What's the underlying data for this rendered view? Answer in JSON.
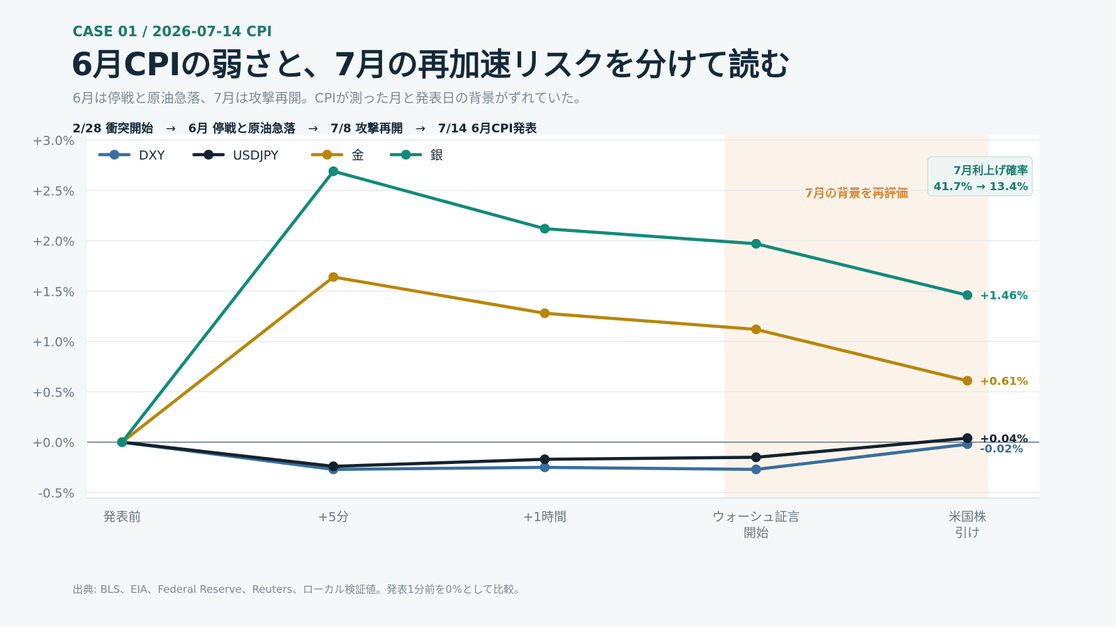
{
  "header": {
    "kicker": "CASE 01 / 2026-07-14 CPI",
    "title": "6月CPIの弱さと、7月の再加速リスクを分けて読む",
    "subtitle": "6月は停戦と原油急落、7月は攻撃再開。CPIが測った月と発表日の背景がずれていた。"
  },
  "timeline": [
    "2/28 衝突開始",
    "6月 停戦と原油急落",
    "7/8 攻撃再開",
    "7/14 6月CPI発表"
  ],
  "timeline_arrow": "→",
  "source": "出典: BLS、EIA、Federal Reserve、Reuters、ローカル検証値。発表1分前を0%として比較。",
  "chart_data": {
    "type": "line",
    "categories": [
      [
        "発表前"
      ],
      [
        "+5分"
      ],
      [
        "+1時間"
      ],
      [
        "ウォーシュ証言",
        "開始"
      ],
      [
        "米国株",
        "引け"
      ]
    ],
    "ylim": [
      -0.5,
      3.0
    ],
    "yticks": [
      {
        "value": 3.0,
        "label": "+3.0%"
      },
      {
        "value": 2.5,
        "label": "+2.5%"
      },
      {
        "value": 2.0,
        "label": "+2.0%"
      },
      {
        "value": 1.5,
        "label": "+1.5%"
      },
      {
        "value": 1.0,
        "label": "+1.0%"
      },
      {
        "value": 0.5,
        "label": "+0.5%"
      },
      {
        "value": 0.0,
        "label": "+0.0%"
      },
      {
        "value": -0.5,
        "label": "-0.5%"
      }
    ],
    "grid": true,
    "legend_position": "top-left",
    "series": [
      {
        "name": "DXY",
        "color": "#3a6e9e",
        "values": [
          0,
          -0.27,
          -0.25,
          -0.27,
          -0.02
        ],
        "end_label": "-0.02%"
      },
      {
        "name": "USDJPY",
        "color": "#13222f",
        "values": [
          0,
          -0.24,
          -0.17,
          -0.15,
          0.04
        ],
        "end_label": "+0.04%"
      },
      {
        "name": "金",
        "color": "#b8860b",
        "values": [
          0,
          1.64,
          1.28,
          1.12,
          0.61
        ],
        "end_label": "+0.61%"
      },
      {
        "name": "銀",
        "color": "#138a7a",
        "values": [
          0,
          2.69,
          2.12,
          1.97,
          1.46
        ],
        "end_label": "+1.46%"
      }
    ],
    "highlight": {
      "from_index": 2.85,
      "to_index": 4.1,
      "label": "7月の背景を再評価",
      "color": "#fbf3ea"
    },
    "callout": {
      "line1": "7月利上げ確率",
      "line2": "41.7% → 13.4%"
    }
  }
}
